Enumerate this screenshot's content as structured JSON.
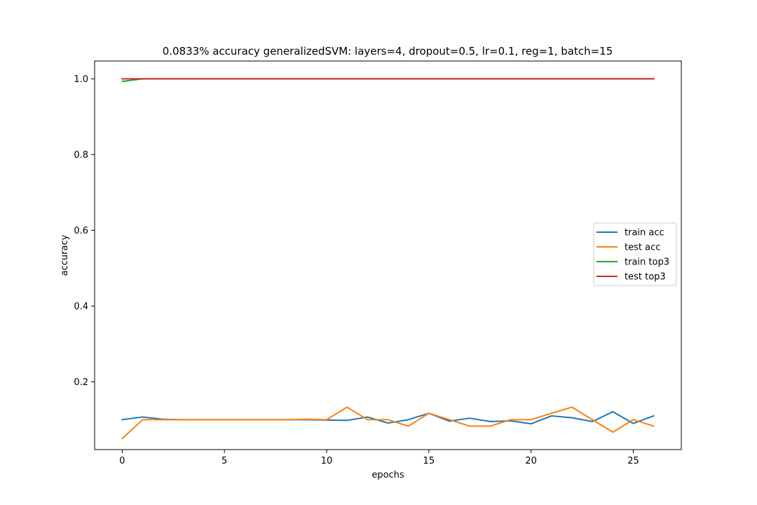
{
  "chart_data": {
    "type": "line",
    "title": "0.0833% accuracy generalizedSVM: layers=4, dropout=0.5, lr=0.1, reg=1, batch=15",
    "xlabel": "epochs",
    "ylabel": "accuracy",
    "xlim": [
      -1.35,
      27.35
    ],
    "ylim": [
      0.021,
      1.047
    ],
    "xticks": [
      0,
      5,
      10,
      15,
      20,
      25
    ],
    "yticks": [
      0.2,
      0.4,
      0.6,
      0.8,
      1.0
    ],
    "xtick_labels": [
      "0",
      "5",
      "10",
      "15",
      "20",
      "25"
    ],
    "ytick_labels": [
      "0.2",
      "0.4",
      "0.6",
      "0.8",
      "1.0"
    ],
    "grid": false,
    "legend_position": "center-right",
    "x": [
      0,
      1,
      2,
      3,
      4,
      5,
      6,
      7,
      8,
      9,
      10,
      11,
      12,
      13,
      14,
      15,
      16,
      17,
      18,
      19,
      20,
      21,
      22,
      23,
      24,
      25,
      26
    ],
    "series": [
      {
        "name": "train acc",
        "color": "#1f77b4",
        "values": [
          0.1,
          0.107,
          0.101,
          0.1,
          0.1,
          0.1,
          0.1,
          0.1,
          0.1,
          0.1,
          0.099,
          0.098,
          0.107,
          0.091,
          0.1,
          0.117,
          0.096,
          0.104,
          0.095,
          0.097,
          0.089,
          0.11,
          0.105,
          0.095,
          0.121,
          0.09,
          0.11
        ]
      },
      {
        "name": "test acc",
        "color": "#ff7f0e",
        "values": [
          0.05,
          0.1,
          0.1,
          0.1,
          0.1,
          0.1,
          0.1,
          0.1,
          0.1,
          0.101,
          0.1,
          0.133,
          0.1,
          0.1,
          0.083,
          0.117,
          0.1,
          0.083,
          0.083,
          0.1,
          0.1,
          0.117,
          0.133,
          0.1,
          0.067,
          0.1,
          0.083
        ]
      },
      {
        "name": "train top3",
        "color": "#2ca02c",
        "values": [
          0.993,
          1.0,
          1.0,
          1.0,
          1.0,
          1.0,
          1.0,
          1.0,
          1.0,
          1.0,
          1.0,
          1.0,
          1.0,
          1.0,
          1.0,
          1.0,
          1.0,
          1.0,
          1.0,
          1.0,
          1.0,
          1.0,
          1.0,
          1.0,
          1.0,
          1.0,
          1.0
        ]
      },
      {
        "name": "test top3",
        "color": "#d62728",
        "values": [
          1.0,
          1.0,
          1.0,
          1.0,
          1.0,
          1.0,
          1.0,
          1.0,
          1.0,
          1.0,
          1.0,
          1.0,
          1.0,
          1.0,
          1.0,
          1.0,
          1.0,
          1.0,
          1.0,
          1.0,
          1.0,
          1.0,
          1.0,
          1.0,
          1.0,
          1.0,
          1.0
        ]
      }
    ]
  }
}
